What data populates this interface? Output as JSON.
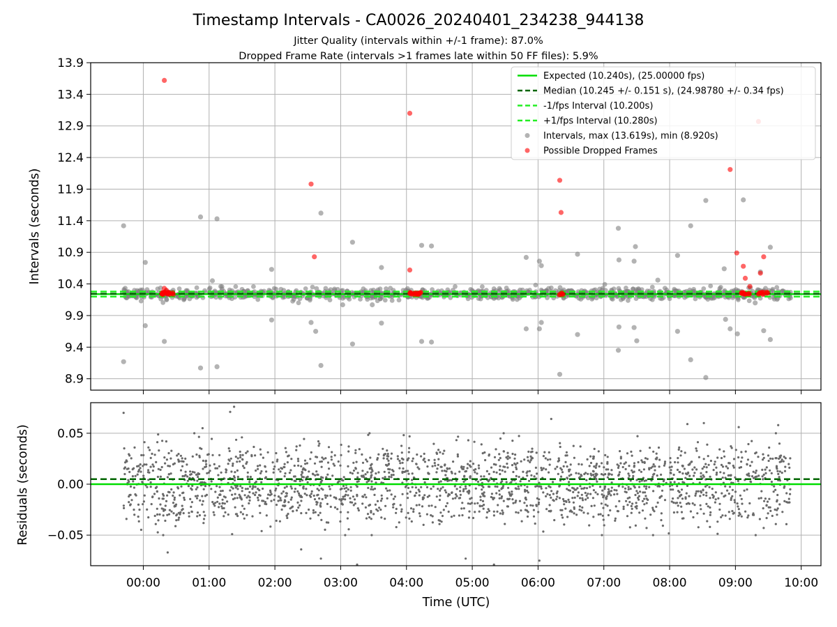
{
  "chart_data": [
    {
      "type": "scatter",
      "title": "Timestamp Intervals - CA0026_20240401_234238_944138",
      "subtitle_lines": [
        "Jitter Quality (intervals within +/-1 frame): 87.0%",
        "Dropped Frame Rate (intervals >1 frames late within 50 FF files): 5.9%"
      ],
      "xlabel": "",
      "ylabel": "Intervals (seconds)",
      "ylim": [
        8.72,
        13.9
      ],
      "xlim_hours": [
        -0.8,
        10.3
      ],
      "y_ticks": [
        "8.9",
        "9.4",
        "9.9",
        "10.4",
        "10.9",
        "11.4",
        "11.9",
        "12.4",
        "12.9",
        "13.4",
        "13.9"
      ],
      "y_tick_values": [
        8.9,
        9.4,
        9.9,
        10.4,
        10.9,
        11.4,
        11.9,
        12.4,
        12.9,
        13.4,
        13.9
      ],
      "grid": true,
      "legend_position": "top-right",
      "reference_lines": {
        "expected": 10.24,
        "median": 10.245,
        "minus_one_frame": 10.2,
        "plus_one_frame": 10.28
      },
      "colors": {
        "expected": "#00dd00",
        "median": "#006400",
        "interval_band": "#22ee22",
        "intervals": "#808080",
        "dropped": "#ff0000"
      },
      "legend": [
        {
          "label": "Expected (10.240s), (25.00000 fps)",
          "style": "solid",
          "color": "#00dd00"
        },
        {
          "label": "Median (10.245 +/- 0.151 s), (24.98780 +/- 0.34 fps)",
          "style": "dashed",
          "color": "#006400"
        },
        {
          "label": "-1/fps Interval (10.200s)",
          "style": "dashed",
          "color": "#22ee22"
        },
        {
          "label": "+1/fps Interval (10.280s)",
          "style": "dashed",
          "color": "#22ee22"
        },
        {
          "label": "Intervals, max (13.619s), min (8.920s)",
          "style": "marker",
          "color": "#808080"
        },
        {
          "label": "Possible Dropped Frames",
          "style": "marker",
          "color": "#ff0000"
        }
      ],
      "series": [
        {
          "name": "Intervals, max (13.619s), min (8.920s)",
          "points": [
            [
              -0.3,
              11.32
            ],
            [
              -0.3,
              9.17
            ],
            [
              0.03,
              10.74
            ],
            [
              0.03,
              9.74
            ],
            [
              0.32,
              9.49
            ],
            [
              0.87,
              11.46
            ],
            [
              0.87,
              9.07
            ],
            [
              1.12,
              11.43
            ],
            [
              1.12,
              9.09
            ],
            [
              1.05,
              10.45
            ],
            [
              1.95,
              10.63
            ],
            [
              1.95,
              9.83
            ],
            [
              2.55,
              9.79
            ],
            [
              2.62,
              9.65
            ],
            [
              2.7,
              11.52
            ],
            [
              2.7,
              9.11
            ],
            [
              3.03,
              10.07
            ],
            [
              3.18,
              11.06
            ],
            [
              3.18,
              9.45
            ],
            [
              3.48,
              10.07
            ],
            [
              3.62,
              10.66
            ],
            [
              3.62,
              9.78
            ],
            [
              4.23,
              11.01
            ],
            [
              4.23,
              9.49
            ],
            [
              4.38,
              11.0
            ],
            [
              4.38,
              9.48
            ],
            [
              5.82,
              10.82
            ],
            [
              5.82,
              9.69
            ],
            [
              6.02,
              10.76
            ],
            [
              6.02,
              9.69
            ],
            [
              6.05,
              10.69
            ],
            [
              6.05,
              9.79
            ],
            [
              6.33,
              8.97
            ],
            [
              6.6,
              10.87
            ],
            [
              6.6,
              9.6
            ],
            [
              7.22,
              11.28
            ],
            [
              7.23,
              10.78
            ],
            [
              7.23,
              9.72
            ],
            [
              7.22,
              9.35
            ],
            [
              7.48,
              10.99
            ],
            [
              7.46,
              10.76
            ],
            [
              7.46,
              9.71
            ],
            [
              7.5,
              9.5
            ],
            [
              7.82,
              10.46
            ],
            [
              8.12,
              10.85
            ],
            [
              8.12,
              9.65
            ],
            [
              8.32,
              11.32
            ],
            [
              8.32,
              9.2
            ],
            [
              8.55,
              11.72
            ],
            [
              8.55,
              8.92
            ],
            [
              8.83,
              10.64
            ],
            [
              8.85,
              9.84
            ],
            [
              8.92,
              9.69
            ],
            [
              9.03,
              9.61
            ],
            [
              9.12,
              11.73
            ],
            [
              9.38,
              10.59
            ],
            [
              9.43,
              9.66
            ],
            [
              9.53,
              10.98
            ],
            [
              9.53,
              9.52
            ],
            [
              9.3,
              10.1
            ]
          ],
          "band": {
            "x_range": [
              -0.3,
              9.85
            ],
            "y_range": [
              10.1,
              10.4
            ],
            "count": 1000
          }
        },
        {
          "name": "Possible Dropped Frames",
          "points": [
            [
              0.32,
              13.62
            ],
            [
              0.32,
              10.33
            ],
            [
              0.35,
              10.3
            ],
            [
              2.55,
              11.98
            ],
            [
              2.6,
              10.83
            ],
            [
              4.05,
              13.1
            ],
            [
              4.05,
              10.62
            ],
            [
              6.33,
              12.04
            ],
            [
              6.35,
              11.53
            ],
            [
              8.92,
              12.21
            ],
            [
              9.02,
              10.89
            ],
            [
              9.12,
              10.68
            ],
            [
              9.15,
              10.49
            ],
            [
              9.22,
              10.36
            ],
            [
              9.38,
              10.57
            ],
            [
              9.43,
              10.83
            ],
            [
              9.35,
              12.97
            ]
          ],
          "clusters": [
            {
              "x": [
                0.28,
                0.48
              ],
              "y": 10.25,
              "count": 22
            },
            {
              "x": [
                4.05,
                4.22
              ],
              "y": 10.25,
              "count": 22
            },
            {
              "x": [
                6.32,
                6.38
              ],
              "y": 10.24,
              "count": 6
            },
            {
              "x": [
                9.08,
                9.22
              ],
              "y": 10.25,
              "count": 12
            },
            {
              "x": [
                9.35,
                9.52
              ],
              "y": 10.25,
              "count": 12
            }
          ]
        }
      ]
    },
    {
      "type": "scatter",
      "title": "",
      "xlabel": "Time (UTC)",
      "ylabel": "Residuals (seconds)",
      "ylim": [
        -0.08,
        0.08
      ],
      "y_ticks": [
        "−0.05",
        "0.00",
        "0.05"
      ],
      "y_tick_values": [
        -0.05,
        0.0,
        0.05
      ],
      "x_ticks": [
        "00:00",
        "01:00",
        "02:00",
        "03:00",
        "04:00",
        "05:00",
        "06:00",
        "07:00",
        "08:00",
        "09:00",
        "10:00"
      ],
      "x_tick_hours": [
        0,
        1,
        2,
        3,
        4,
        5,
        6,
        7,
        8,
        9,
        10
      ],
      "grid": true,
      "reference_lines": {
        "zero": 0.0,
        "median_offset": 0.005
      },
      "colors": {
        "zero": "#00dd00",
        "median": "#006400",
        "points": "#696969"
      },
      "series": [
        {
          "name": "",
          "x_range": [
            -0.3,
            9.85
          ],
          "levels": [
            -0.02,
            0.0,
            0.02
          ],
          "spread": 0.03,
          "count": 2100,
          "outliers": [
            [
              -0.3,
              0.07
            ],
            [
              1.38,
              0.076
            ],
            [
              1.32,
              0.071
            ],
            [
              1.35,
              -0.049
            ],
            [
              0.37,
              -0.067
            ],
            [
              2.4,
              -0.064
            ],
            [
              2.7,
              -0.073
            ],
            [
              3.25,
              -0.079
            ],
            [
              4.9,
              -0.073
            ],
            [
              5.33,
              -0.079
            ],
            [
              6.02,
              -0.075
            ],
            [
              6.2,
              0.064
            ],
            [
              7.65,
              -0.043
            ],
            [
              8.27,
              0.059
            ],
            [
              8.52,
              0.06
            ],
            [
              9.43,
              -0.043
            ],
            [
              9.05,
              0.056
            ],
            [
              0.9,
              0.055
            ],
            [
              9.65,
              0.058
            ]
          ]
        }
      ]
    }
  ]
}
